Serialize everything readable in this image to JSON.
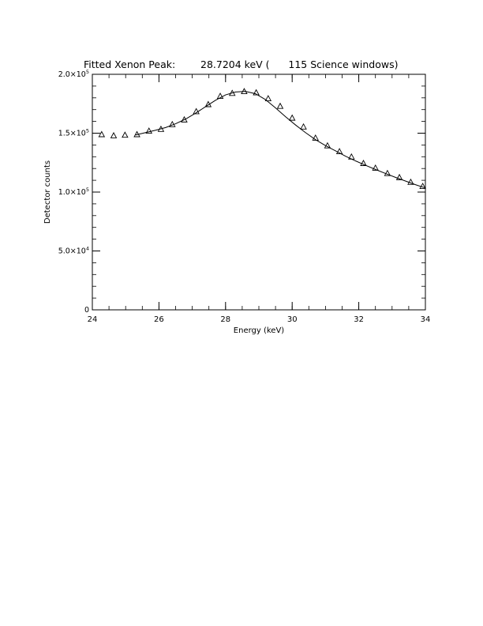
{
  "chart_data": {
    "type": "scatter",
    "title": "Fitted Xenon Peak:        28.7204 keV (      115 Science windows)",
    "xlabel": "Energy (keV)",
    "ylabel": "Detector counts",
    "xlim": [
      24,
      34
    ],
    "ylim": [
      0,
      200000
    ],
    "x_ticks": [
      "24",
      "26",
      "28",
      "30",
      "32",
      "34"
    ],
    "y_ticks": [
      {
        "mant": "0",
        "exp": ""
      },
      {
        "mant": "5.0×10",
        "exp": "4"
      },
      {
        "mant": "1.0×10",
        "exp": "5"
      },
      {
        "mant": "1.5×10",
        "exp": "5"
      },
      {
        "mant": "2.0×10",
        "exp": "5"
      }
    ],
    "grid": false,
    "series": [
      {
        "marker": "triangle",
        "x": [
          24.28,
          24.64,
          24.98,
          25.34,
          25.7,
          26.06,
          26.4,
          26.76,
          27.12,
          27.48,
          27.84,
          28.2,
          28.56,
          28.92,
          29.28,
          29.64,
          30.0,
          30.34,
          30.7,
          31.06,
          31.42,
          31.78,
          32.14,
          32.5,
          32.86,
          33.22,
          33.56,
          33.92
        ],
        "y": [
          149000,
          148000,
          148500,
          149000,
          152000,
          153500,
          157500,
          161500,
          168500,
          174500,
          181500,
          184000,
          185500,
          184500,
          179500,
          173000,
          163000,
          155500,
          146000,
          139500,
          134500,
          130000,
          124500,
          120500,
          116000,
          112500,
          108500,
          105000
        ]
      },
      {
        "type": "line",
        "x": [
          25.3,
          25.6,
          25.9,
          26.2,
          26.5,
          26.8,
          27.1,
          27.4,
          27.7,
          28.0,
          28.3,
          28.6,
          28.9,
          29.2,
          29.5,
          29.8,
          30.1,
          30.4,
          30.7,
          31.0,
          31.3,
          31.6,
          31.9,
          32.2,
          32.5,
          32.8,
          33.1,
          33.4,
          33.7,
          34.0
        ],
        "y": [
          148500,
          150500,
          152500,
          154800,
          158000,
          162000,
          167000,
          172500,
          178000,
          182500,
          185000,
          185500,
          183500,
          178500,
          171500,
          164000,
          157000,
          150500,
          144500,
          139500,
          135000,
          130500,
          126500,
          122800,
          119200,
          115800,
          112500,
          109400,
          106300,
          103500
        ]
      }
    ]
  }
}
